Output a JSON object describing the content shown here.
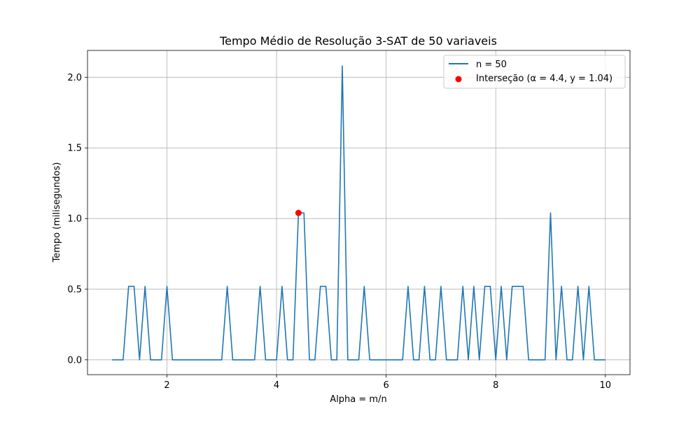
{
  "chart_data": {
    "type": "line",
    "title": "Tempo Médio de Resolução 3-SAT de 50 variaveis",
    "xlabel": "Alpha = m/n",
    "ylabel": "Tempo (milisegundos)",
    "xlim": [
      0.55,
      10.45
    ],
    "ylim": [
      -0.105,
      2.19
    ],
    "xticks": [
      2,
      4,
      6,
      8,
      10
    ],
    "yticks": [
      0.0,
      0.5,
      1.0,
      1.5,
      2.0
    ],
    "xtick_labels": [
      "2",
      "4",
      "6",
      "8",
      "10"
    ],
    "ytick_labels": [
      "0.0",
      "0.5",
      "1.0",
      "1.5",
      "2.0"
    ],
    "grid": true,
    "legend_position": "top-right",
    "series": [
      {
        "name": "n = 50",
        "color": "#1f77b4",
        "x": [
          1.0,
          1.1,
          1.2,
          1.3,
          1.4,
          1.5,
          1.6,
          1.7,
          1.8,
          1.9,
          2.0,
          2.1,
          2.2,
          2.3,
          2.4,
          2.5,
          2.6,
          2.7,
          2.8,
          2.9,
          3.0,
          3.1,
          3.2,
          3.3,
          3.4,
          3.5,
          3.6,
          3.7,
          3.8,
          3.9,
          4.0,
          4.1,
          4.2,
          4.3,
          4.4,
          4.5,
          4.6,
          4.7,
          4.8,
          4.9,
          5.0,
          5.1,
          5.2,
          5.3,
          5.4,
          5.5,
          5.6,
          5.7,
          5.8,
          5.9,
          6.0,
          6.1,
          6.2,
          6.3,
          6.4,
          6.5,
          6.6,
          6.7,
          6.8,
          6.9,
          7.0,
          7.1,
          7.2,
          7.3,
          7.4,
          7.5,
          7.6,
          7.7,
          7.8,
          7.9,
          8.0,
          8.1,
          8.2,
          8.3,
          8.4,
          8.5,
          8.6,
          8.7,
          8.8,
          8.9,
          9.0,
          9.1,
          9.2,
          9.3,
          9.4,
          9.5,
          9.6,
          9.7,
          9.8,
          9.9,
          10.0
        ],
        "y": [
          0,
          0,
          0,
          0.52,
          0.52,
          0,
          0.52,
          0,
          0,
          0,
          0.52,
          0,
          0,
          0,
          0,
          0,
          0,
          0,
          0,
          0,
          0,
          0.52,
          0,
          0,
          0,
          0,
          0,
          0.52,
          0,
          0,
          0,
          0.52,
          0,
          0,
          1.04,
          1.04,
          0,
          0,
          0.52,
          0.52,
          0,
          0,
          2.08,
          0,
          0,
          0,
          0.52,
          0,
          0,
          0,
          0,
          0,
          0,
          0,
          0.52,
          0,
          0,
          0.52,
          0,
          0,
          0.52,
          0,
          0,
          0,
          0.52,
          0,
          0.52,
          0,
          0.52,
          0.52,
          0,
          0.52,
          0,
          0.52,
          0.52,
          0.52,
          0,
          0,
          0,
          0,
          1.04,
          0,
          0.52,
          0,
          0,
          0.52,
          0,
          0.52,
          0,
          0,
          0
        ]
      }
    ],
    "points": [
      {
        "name": "Interseção (α = 4.4, y = 1.04)",
        "x": 4.4,
        "y": 1.04,
        "color": "#ff0000"
      }
    ]
  }
}
